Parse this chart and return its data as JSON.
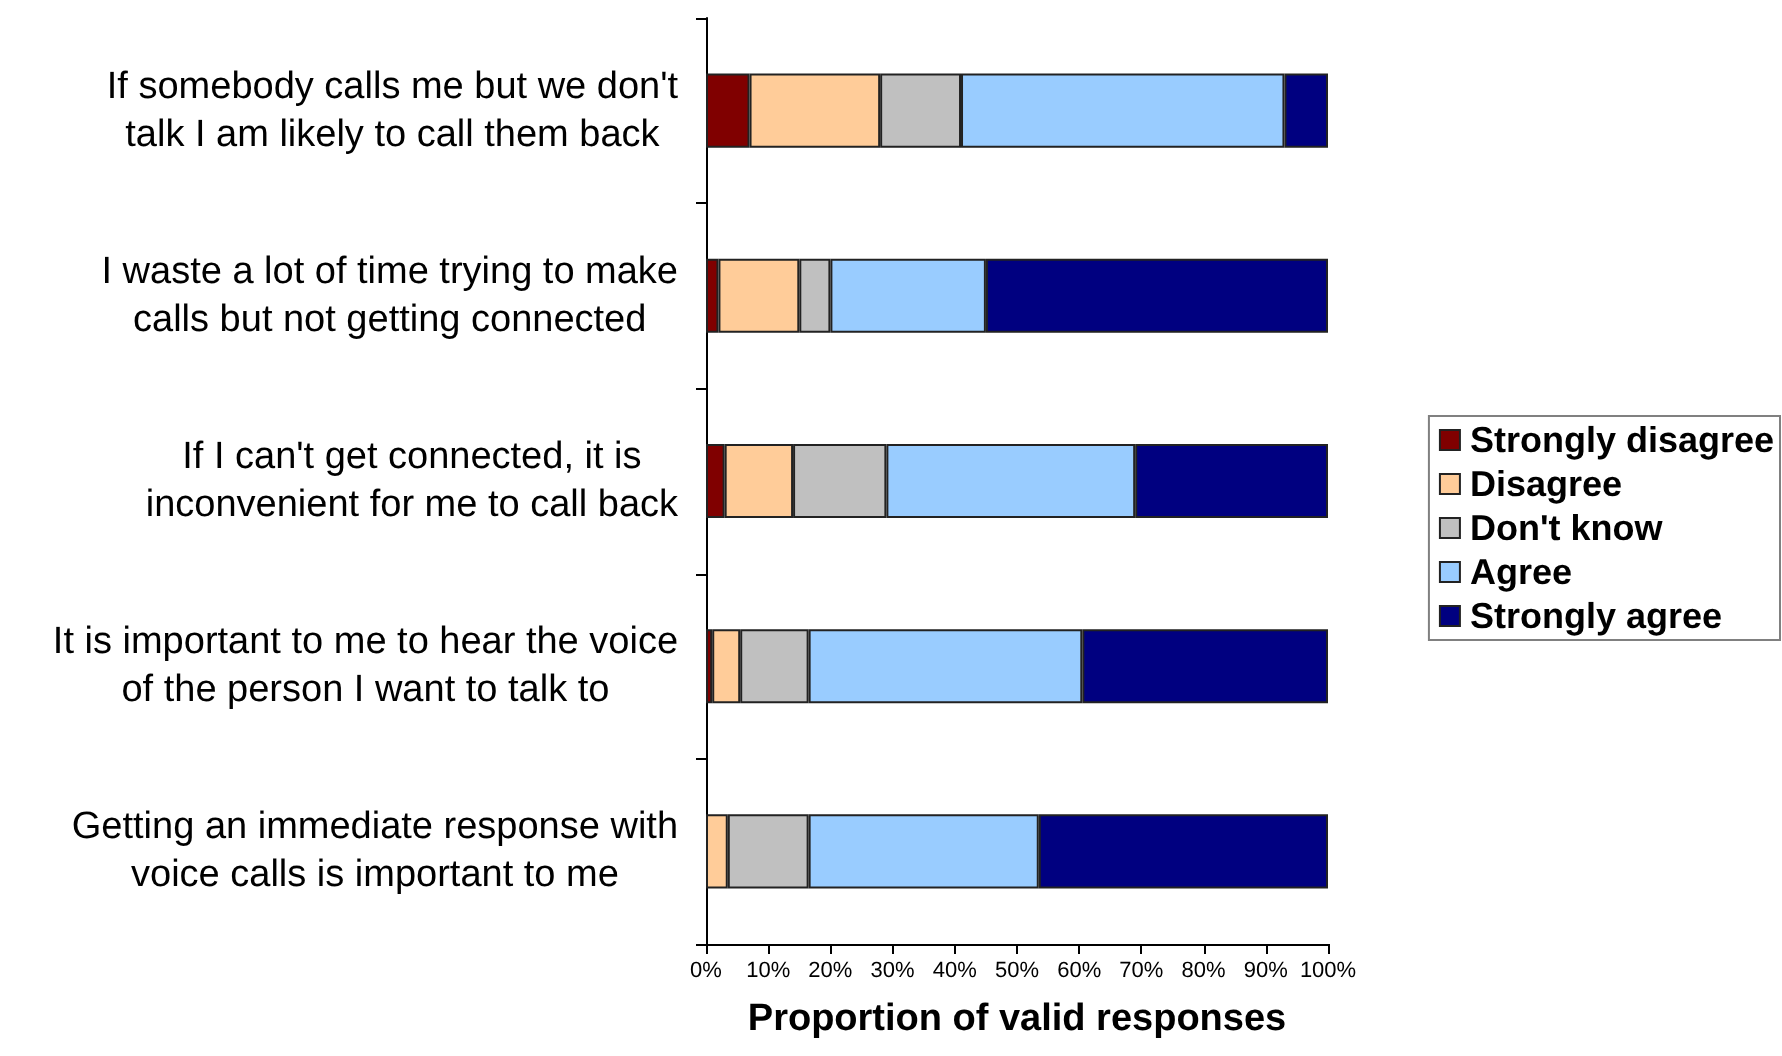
{
  "chart_data": {
    "type": "bar",
    "orientation": "horizontal",
    "stacked": true,
    "categories": [
      "If somebody calls me but we don't\ntalk I am likely to call them back",
      "I waste a lot of time trying to make\ncalls but not getting connected",
      "If I can't get connected, it is\ninconvenient for me to call back",
      "It is important to me to hear the voice\nof the person I want to talk to",
      "Getting an immediate response with\nvoice calls is important to me"
    ],
    "series": [
      {
        "name": "Strongly disagree",
        "color": "#800000",
        "values": [
          7,
          2,
          3,
          1,
          null
        ]
      },
      {
        "name": "Disagree",
        "color": "#ffcc99",
        "values": [
          21,
          13,
          11,
          4.5,
          3.5
        ]
      },
      {
        "name": "Don't know",
        "color": "#c0c0c0",
        "values": [
          13,
          5,
          15,
          11,
          13
        ]
      },
      {
        "name": "Agree",
        "color": "#99ccff",
        "values": [
          52,
          25,
          40,
          44,
          37
        ]
      },
      {
        "name": "Strongly agree",
        "color": "#000080",
        "values": [
          7,
          55,
          31,
          39.5,
          46.5
        ]
      }
    ],
    "xlabel": "Proportion of valid responses",
    "xlim": [
      0,
      100
    ],
    "xticks": [
      {
        "value": 0,
        "label": "0%"
      },
      {
        "value": 10,
        "label": "10%"
      },
      {
        "value": 20,
        "label": "20%"
      },
      {
        "value": 30,
        "label": "30%"
      },
      {
        "value": 40,
        "label": "40%"
      },
      {
        "value": 50,
        "label": "50%"
      },
      {
        "value": 60,
        "label": "60%"
      },
      {
        "value": 70,
        "label": "70%"
      },
      {
        "value": 80,
        "label": "80%"
      },
      {
        "value": 90,
        "label": "90%"
      },
      {
        "value": 100,
        "label": "100%"
      }
    ],
    "grid": false,
    "legend": "right"
  }
}
